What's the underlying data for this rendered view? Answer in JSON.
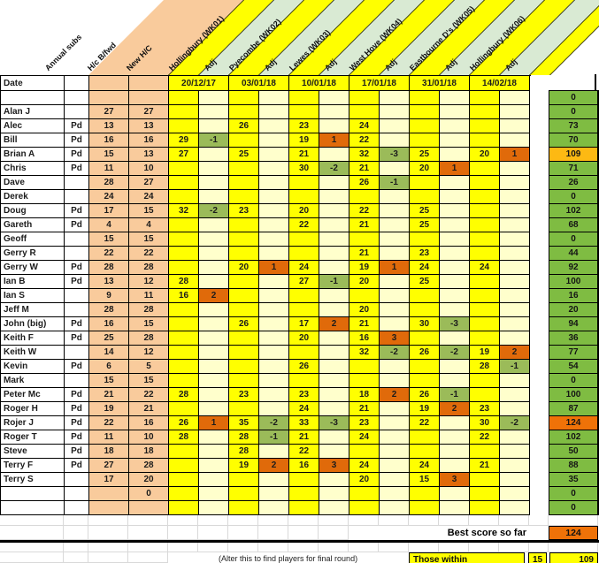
{
  "left_headers": {
    "annual_subs": "Annual subs",
    "hc_bfwd": "H/c B/fwd",
    "new_hc": "New H/C",
    "date_label": "Date",
    "paid_label": "Pd"
  },
  "adj_label": "Adj",
  "weeks": [
    {
      "name": "Hollingbury (WK01)",
      "date": "20/12/17"
    },
    {
      "name": "Pyecombe (WK02)",
      "date": "03/01/18"
    },
    {
      "name": "Lewes (WK03)",
      "date": "10/01/18"
    },
    {
      "name": "West Hove (WK04)",
      "date": "17/01/18"
    },
    {
      "name": "Eastbourne D's (WK05)",
      "date": "31/01/18"
    },
    {
      "name": "Hollingbury (WK06)",
      "date": "14/02/18"
    }
  ],
  "rows": [
    {
      "name": "",
      "pd": false,
      "hc_bfwd": "",
      "new_hc": "",
      "cells": [
        "",
        "",
        "",
        "",
        "",
        "",
        "",
        "",
        "",
        "",
        "",
        ""
      ],
      "total": "0"
    },
    {
      "name": "Alan J",
      "pd": false,
      "hc_bfwd": "27",
      "new_hc": "27",
      "cells": [
        "",
        "",
        "",
        "",
        "",
        "",
        "",
        "",
        "",
        "",
        "",
        ""
      ],
      "total": "0"
    },
    {
      "name": "Alec",
      "pd": true,
      "hc_bfwd": "13",
      "new_hc": "13",
      "cells": [
        "",
        "",
        "26",
        "",
        "23",
        "",
        "24",
        "",
        "",
        "",
        "",
        ""
      ],
      "total": "73"
    },
    {
      "name": "Bill",
      "pd": true,
      "hc_bfwd": "16",
      "new_hc": "16",
      "cells": [
        "29",
        "-1",
        "",
        "",
        "19",
        "1",
        "22",
        "",
        "",
        "",
        "",
        ""
      ],
      "total": "70"
    },
    {
      "name": "Brian A",
      "pd": true,
      "hc_bfwd": "15",
      "new_hc": "13",
      "cells": [
        "27",
        "",
        "25",
        "",
        "21",
        "",
        "32",
        "-3",
        "25",
        "",
        "20",
        "1"
      ],
      "total": "109",
      "total_style": "amber"
    },
    {
      "name": "Chris",
      "pd": true,
      "hc_bfwd": "11",
      "new_hc": "10",
      "cells": [
        "",
        "",
        "",
        "",
        "30",
        "-2",
        "21",
        "",
        "20",
        "1",
        "",
        ""
      ],
      "total": "71"
    },
    {
      "name": "Dave",
      "pd": false,
      "hc_bfwd": "28",
      "new_hc": "27",
      "cells": [
        "",
        "",
        "",
        "",
        "",
        "",
        "26",
        "-1",
        "",
        "",
        "",
        ""
      ],
      "total": "26"
    },
    {
      "name": "Derek",
      "pd": false,
      "hc_bfwd": "24",
      "new_hc": "24",
      "cells": [
        "",
        "",
        "",
        "",
        "",
        "",
        "",
        "",
        "",
        "",
        "",
        ""
      ],
      "total": "0"
    },
    {
      "name": "Doug",
      "pd": true,
      "hc_bfwd": "17",
      "new_hc": "15",
      "cells": [
        "32",
        "-2",
        "23",
        "",
        "20",
        "",
        "22",
        "",
        "25",
        "",
        "",
        ""
      ],
      "total": "102"
    },
    {
      "name": "Gareth",
      "pd": true,
      "hc_bfwd": "4",
      "new_hc": "4",
      "cells": [
        "",
        "",
        "",
        "",
        "22",
        "",
        "21",
        "",
        "25",
        "",
        "",
        ""
      ],
      "total": "68"
    },
    {
      "name": "Geoff",
      "pd": false,
      "hc_bfwd": "15",
      "new_hc": "15",
      "cells": [
        "",
        "",
        "",
        "",
        "",
        "",
        "",
        "",
        "",
        "",
        "",
        ""
      ],
      "total": "0"
    },
    {
      "name": "Gerry R",
      "pd": false,
      "hc_bfwd": "22",
      "new_hc": "22",
      "cells": [
        "",
        "",
        "",
        "",
        "",
        "",
        "21",
        "",
        "23",
        "",
        "",
        ""
      ],
      "total": "44"
    },
    {
      "name": "Gerry W",
      "pd": true,
      "hc_bfwd": "28",
      "new_hc": "28",
      "cells": [
        "",
        "",
        "20",
        "1",
        "24",
        "",
        "19",
        "1",
        "24",
        "",
        "24",
        ""
      ],
      "total": "92"
    },
    {
      "name": "Ian B",
      "pd": true,
      "hc_bfwd": "13",
      "new_hc": "12",
      "cells": [
        "28",
        "",
        "",
        "",
        "27",
        "-1",
        "20",
        "",
        "25",
        "",
        "",
        ""
      ],
      "total": "100"
    },
    {
      "name": "Ian S",
      "pd": false,
      "hc_bfwd": "9",
      "new_hc": "11",
      "cells": [
        "16",
        "2",
        "",
        "",
        "",
        "",
        "",
        "",
        "",
        "",
        "",
        ""
      ],
      "total": "16"
    },
    {
      "name": "Jeff M",
      "pd": false,
      "hc_bfwd": "28",
      "new_hc": "28",
      "cells": [
        "",
        "",
        "",
        "",
        "",
        "",
        "20",
        "",
        "",
        "",
        "",
        ""
      ],
      "total": "20"
    },
    {
      "name": "John (big)",
      "pd": true,
      "hc_bfwd": "16",
      "new_hc": "15",
      "cells": [
        "",
        "",
        "26",
        "",
        "17",
        "2",
        "21",
        "",
        "30",
        "-3",
        "",
        ""
      ],
      "total": "94"
    },
    {
      "name": "Keith F",
      "pd": true,
      "hc_bfwd": "25",
      "new_hc": "28",
      "cells": [
        "",
        "",
        "",
        "",
        "20",
        "",
        "16",
        "3",
        "",
        "",
        "",
        ""
      ],
      "total": "36"
    },
    {
      "name": "Keith W",
      "pd": false,
      "hc_bfwd": "14",
      "new_hc": "12",
      "cells": [
        "",
        "",
        "",
        "",
        "",
        "",
        "32",
        "-2",
        "26",
        "-2",
        "19",
        "2"
      ],
      "total": "77"
    },
    {
      "name": "Kevin",
      "pd": true,
      "hc_bfwd": "6",
      "new_hc": "5",
      "cells": [
        "",
        "",
        "",
        "",
        "26",
        "",
        "",
        "",
        "",
        "",
        "28",
        "-1"
      ],
      "total": "54"
    },
    {
      "name": "Mark",
      "pd": false,
      "hc_bfwd": "15",
      "new_hc": "15",
      "cells": [
        "",
        "",
        "",
        "",
        "",
        "",
        "",
        "",
        "",
        "",
        "",
        ""
      ],
      "total": "0"
    },
    {
      "name": "Peter Mc",
      "pd": true,
      "hc_bfwd": "21",
      "new_hc": "22",
      "cells": [
        "28",
        "",
        "23",
        "",
        "23",
        "",
        "18",
        "2",
        "26",
        "-1",
        "",
        ""
      ],
      "total": "100"
    },
    {
      "name": "Roger H",
      "pd": true,
      "hc_bfwd": "19",
      "new_hc": "21",
      "cells": [
        "",
        "",
        "",
        "",
        "24",
        "",
        "21",
        "",
        "19",
        "2",
        "23",
        ""
      ],
      "total": "87"
    },
    {
      "name": "Rojer J",
      "pd": true,
      "hc_bfwd": "22",
      "new_hc": "16",
      "cells": [
        "26",
        "1",
        "35",
        "-2",
        "33",
        "-3",
        "23",
        "",
        "22",
        "",
        "30",
        "-2"
      ],
      "total": "124",
      "total_style": "orange"
    },
    {
      "name": "Roger T",
      "pd": true,
      "hc_bfwd": "11",
      "new_hc": "10",
      "cells": [
        "28",
        "",
        "28",
        "-1",
        "21",
        "",
        "24",
        "",
        "",
        "",
        "22",
        ""
      ],
      "total": "102"
    },
    {
      "name": "Steve",
      "pd": true,
      "hc_bfwd": "18",
      "new_hc": "18",
      "cells": [
        "",
        "",
        "28",
        "",
        "22",
        "",
        "",
        "",
        "",
        "",
        "",
        ""
      ],
      "total": "50"
    },
    {
      "name": "Terry F",
      "pd": true,
      "hc_bfwd": "27",
      "new_hc": "28",
      "cells": [
        "",
        "",
        "19",
        "2",
        "16",
        "3",
        "24",
        "",
        "24",
        "",
        "21",
        ""
      ],
      "total": "88"
    },
    {
      "name": "Terry S",
      "pd": false,
      "hc_bfwd": "17",
      "new_hc": "20",
      "cells": [
        "",
        "",
        "",
        "",
        "",
        "",
        "20",
        "",
        "15",
        "3",
        "",
        ""
      ],
      "total": "35"
    },
    {
      "name": "",
      "pd": false,
      "hc_bfwd": "",
      "new_hc": "0",
      "cells": [
        "",
        "",
        "",
        "",
        "",
        "",
        "",
        "",
        "",
        "",
        "",
        ""
      ],
      "total": "0"
    },
    {
      "name": "",
      "pd": false,
      "hc_bfwd": "",
      "new_hc": "",
      "cells": [
        "",
        "",
        "",
        "",
        "",
        "",
        "",
        "",
        "",
        "",
        "",
        ""
      ],
      "total": "0"
    }
  ],
  "footer": {
    "best_label": "Best score so far",
    "best_value": "124",
    "note": "(Alter this to find players for final round)",
    "those_within_label": "Those within",
    "within_handicap": "15",
    "within_score": "109"
  },
  "colors": {
    "peach": "#F9CB9C",
    "yellow": "#FFFF00",
    "cream": "#FFFFCC",
    "band_green": "#D9EAD3",
    "adj_green": "#9BBB59",
    "adj_orange": "#E06A0A",
    "total_green": "#7FBC42",
    "amber": "#FDB913",
    "best_orange": "#EF7208"
  }
}
